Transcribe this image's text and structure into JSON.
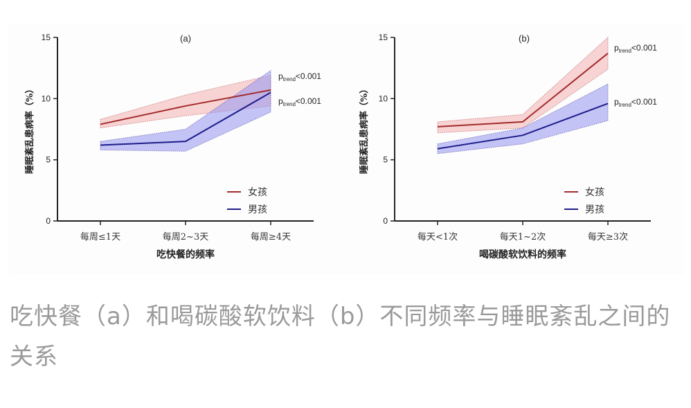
{
  "chart_data": [
    {
      "type": "line",
      "title": "(a)",
      "xlabel": "吃快餐的频率",
      "ylabel": "睡眠紊乱患病率（%）",
      "ylim": [
        0,
        15
      ],
      "yticks": [
        0,
        5,
        10,
        15
      ],
      "categories": [
        "每周≤1天",
        "每周2~3天",
        "每周≥4天"
      ],
      "series": [
        {
          "name": "女孩",
          "color": "#a32a2a",
          "band": "#f4b8b8",
          "values": [
            7.9,
            9.4,
            10.7
          ],
          "lower": [
            7.6,
            8.6,
            9.4
          ],
          "upper": [
            8.3,
            10.3,
            11.9
          ],
          "annotation": "p_trend<0.001"
        },
        {
          "name": "男孩",
          "color": "#1c1c8a",
          "band": "#9d9df2",
          "values": [
            6.2,
            6.5,
            10.5
          ],
          "lower": [
            5.8,
            5.7,
            8.9
          ],
          "upper": [
            6.5,
            7.5,
            12.3
          ],
          "annotation": "p_trend<0.001"
        }
      ],
      "legend": "bottom-right"
    },
    {
      "type": "line",
      "title": "(b)",
      "xlabel": "喝碳酸软饮料的频率",
      "ylabel": "睡眠紊乱患病率（%）",
      "ylim": [
        0,
        15
      ],
      "yticks": [
        0,
        5,
        10,
        15
      ],
      "categories": [
        "每天<1次",
        "每天1~2次",
        "每天≥3次"
      ],
      "series": [
        {
          "name": "女孩",
          "color": "#a32a2a",
          "band": "#f4b8b8",
          "values": [
            7.7,
            8.1,
            13.7
          ],
          "lower": [
            7.2,
            7.6,
            12.4
          ],
          "upper": [
            8.1,
            8.7,
            15.0
          ],
          "annotation": "p_trend<0.001"
        },
        {
          "name": "男孩",
          "color": "#1c1c8a",
          "band": "#9d9df2",
          "values": [
            5.9,
            7.0,
            9.6
          ],
          "lower": [
            5.5,
            6.3,
            8.2
          ],
          "upper": [
            6.3,
            7.6,
            11.2
          ],
          "annotation": "p_trend<0.001"
        }
      ],
      "legend": "bottom-right"
    }
  ],
  "caption": "吃快餐（a）和喝碳酸软饮料（b）不同频率与睡眠紊乱之间的关系",
  "annotation_p": "p",
  "annotation_sub": "trend",
  "annotation_rest": "<0.001"
}
